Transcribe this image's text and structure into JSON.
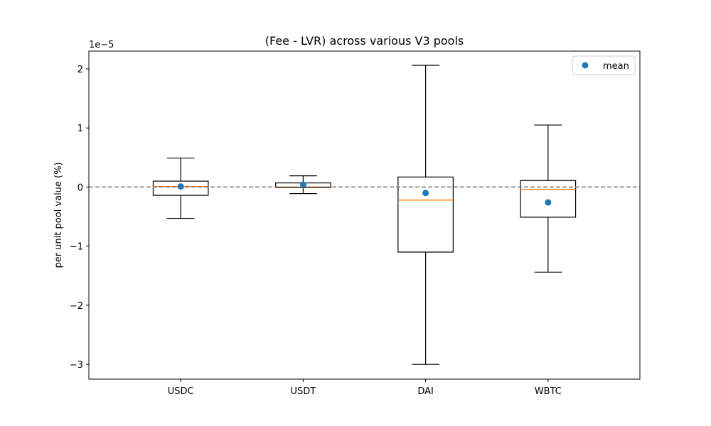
{
  "chart_data": {
    "type": "box",
    "title": "(Fee - LVR) across various V3 pools",
    "ylabel": "per unit pool value (%)",
    "xlabel": "",
    "y_multiplier_label": "1e−5",
    "ylim": [
      -3.25,
      2.3
    ],
    "y_scale_factor": 1e-05,
    "yticks": [
      -3,
      -2,
      -1,
      0,
      1,
      2
    ],
    "ytick_labels": [
      "−3",
      "−2",
      "−1",
      "0",
      "1",
      "2"
    ],
    "categories": [
      "USDC",
      "USDT",
      "DAI",
      "WBTC"
    ],
    "boxes": [
      {
        "category": "USDC",
        "whislo": -0.53,
        "q1": -0.14,
        "med": 0.01,
        "q3": 0.1,
        "whishi": 0.49,
        "mean": 0.01
      },
      {
        "category": "USDT",
        "whislo": -0.11,
        "q1": -0.01,
        "med": 0.0,
        "q3": 0.07,
        "whishi": 0.19,
        "mean": 0.04
      },
      {
        "category": "DAI",
        "whislo": -3.0,
        "q1": -1.1,
        "med": -0.22,
        "q3": 0.17,
        "whishi": 2.06,
        "mean": -0.1
      },
      {
        "category": "WBTC",
        "whislo": -1.44,
        "q1": -0.51,
        "med": -0.04,
        "q3": 0.11,
        "whishi": 1.05,
        "mean": -0.26
      }
    ],
    "reference_line": {
      "y": 0,
      "style": "dashed",
      "color": "#808080"
    },
    "legend": {
      "placement": "top-right",
      "entries": [
        {
          "label": "mean",
          "marker": "circle",
          "color": "#1f77b4"
        }
      ]
    },
    "colors": {
      "box": "#000000",
      "median": "#ff7f0e",
      "mean": "#1f77b4"
    },
    "grid": false
  }
}
